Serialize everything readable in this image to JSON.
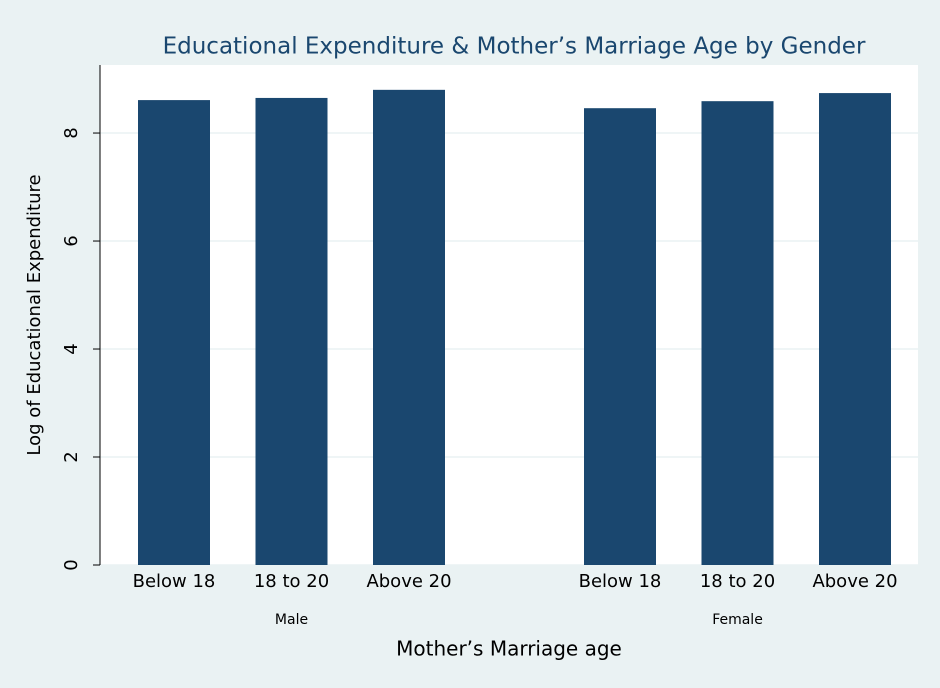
{
  "chart_data": {
    "type": "bar",
    "title": "Educational Expenditure & Mother’s Marriage Age by Gender",
    "xlabel": "Mother’s Marriage age",
    "ylabel": "Log of Educational Expenditure",
    "groups": [
      {
        "name": "Male",
        "categories": [
          "Below 18",
          "18 to 20",
          "Above 20"
        ],
        "values": [
          8.61,
          8.65,
          8.8
        ]
      },
      {
        "name": "Female",
        "categories": [
          "Below 18",
          "18 to 20",
          "Above 20"
        ],
        "values": [
          8.46,
          8.59,
          8.74
        ]
      }
    ],
    "color": "#1a476f",
    "ylim": [
      0,
      9.26
    ],
    "yticks": [
      0,
      2,
      4,
      6,
      8
    ],
    "grid": true
  }
}
